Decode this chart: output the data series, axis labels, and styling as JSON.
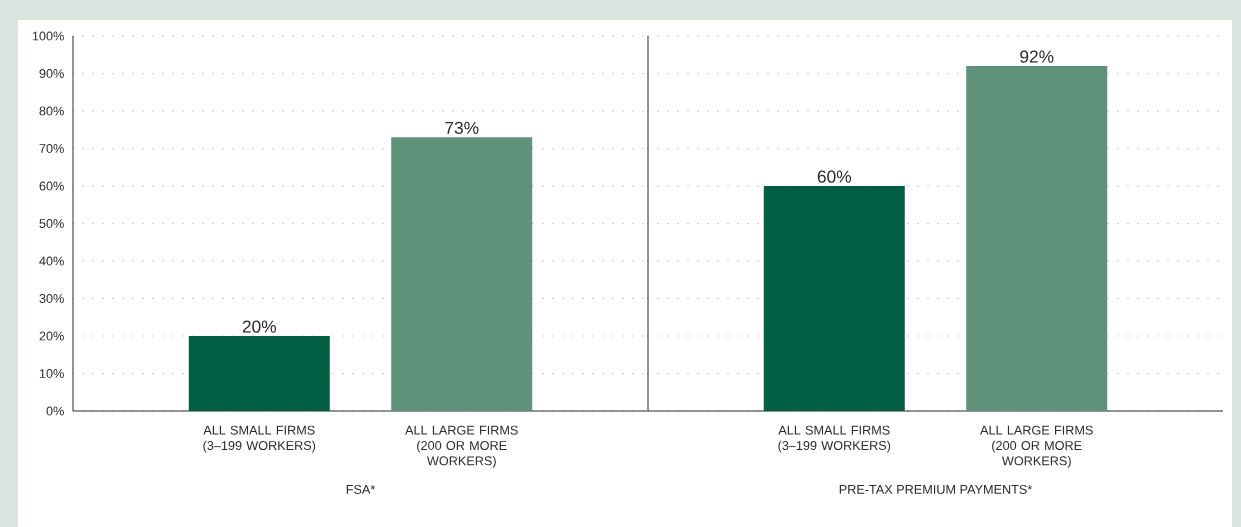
{
  "chart_data": [
    {
      "type": "bar",
      "xlabel": "FSA*",
      "categories": [
        "ALL SMALL FIRMS (3–199 WORKERS)",
        "ALL LARGE FIRMS (200 OR MORE WORKERS)"
      ],
      "values": [
        20,
        73
      ],
      "value_labels": [
        "20%",
        "73%"
      ],
      "colors": [
        "#025e43",
        "#5f917b"
      ],
      "ylim": [
        0,
        100
      ],
      "yticks": [
        {
          "value": 0,
          "label": "0%"
        },
        {
          "value": 10,
          "label": "10%"
        },
        {
          "value": 20,
          "label": "20%"
        },
        {
          "value": 30,
          "label": "30%"
        },
        {
          "value": 40,
          "label": "40%"
        },
        {
          "value": 50,
          "label": "50%"
        },
        {
          "value": 60,
          "label": "60%"
        },
        {
          "value": 70,
          "label": "70%"
        },
        {
          "value": 80,
          "label": "80%"
        },
        {
          "value": 90,
          "label": "90%"
        },
        {
          "value": 100,
          "label": "100%"
        }
      ],
      "grid": "y"
    },
    {
      "type": "bar",
      "xlabel": "PRE-TAX PREMIUM PAYMENTS*",
      "categories": [
        "ALL SMALL FIRMS (3–199 WORKERS)",
        "ALL LARGE FIRMS (200 OR MORE WORKERS)"
      ],
      "values": [
        60,
        92
      ],
      "value_labels": [
        "60%",
        "92%"
      ],
      "colors": [
        "#025e43",
        "#5f917b"
      ],
      "ylim": [
        0,
        100
      ],
      "yticks": [
        {
          "value": 0,
          "label": null
        },
        {
          "value": 10,
          "label": null
        },
        {
          "value": 20,
          "label": null
        },
        {
          "value": 30,
          "label": null
        },
        {
          "value": 40,
          "label": null
        },
        {
          "value": 50,
          "label": null
        },
        {
          "value": 60,
          "label": null
        },
        {
          "value": 70,
          "label": null
        },
        {
          "value": 80,
          "label": null
        },
        {
          "value": 90,
          "label": null
        },
        {
          "value": 100,
          "label": null
        }
      ],
      "grid": "y",
      "tick_labels": "x"
    }
  ]
}
